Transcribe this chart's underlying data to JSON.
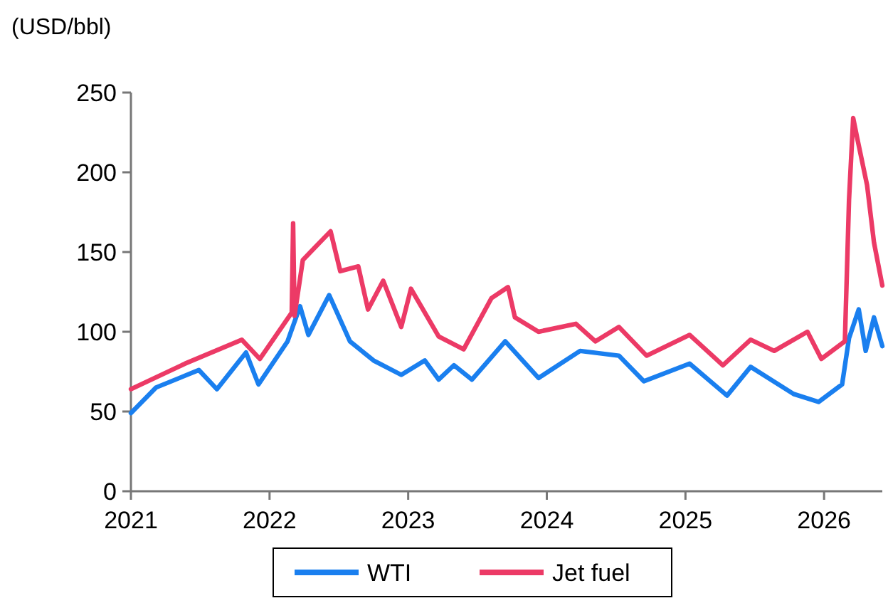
{
  "chart_data": {
    "type": "line",
    "ylabel": "(USD/bbl)",
    "xlim": [
      2021,
      2026.42
    ],
    "xticks": [
      2021,
      2022,
      2023,
      2024,
      2025,
      2026
    ],
    "ylim": [
      0,
      250
    ],
    "yticks": [
      0,
      50,
      100,
      150,
      200,
      250
    ],
    "grid": false,
    "legend": "bottom",
    "line_style": "solid",
    "marker": "none",
    "series": [
      {
        "name": "WTI",
        "color": "#1a7fef",
        "x": [
          2021,
          2021.18,
          2021.49,
          2021.62,
          2021.83,
          2021.92,
          2022.13,
          2022.22,
          2022.28,
          2022.43,
          2022.58,
          2022.75,
          2022.95,
          2023.12,
          2023.22,
          2023.33,
          2023.46,
          2023.7,
          2023.94,
          2024.24,
          2024.52,
          2024.7,
          2025.03,
          2025.3,
          2025.47,
          2025.78,
          2025.96,
          2026.13,
          2026.18,
          2026.25,
          2026.3,
          2026.36,
          2026.42
        ],
        "values": [
          49,
          65,
          76,
          64,
          87,
          67,
          94,
          116,
          98,
          123,
          94,
          82,
          73,
          82,
          70,
          79,
          70,
          94,
          71,
          88,
          85,
          69,
          80,
          60,
          78,
          61,
          56,
          67,
          96,
          114,
          88,
          109,
          91
        ]
      },
      {
        "name": "Jet fuel",
        "color": "#ec3a66",
        "x": [
          2021,
          2021.39,
          2021.8,
          2021.93,
          2022.16,
          2022.17,
          2022.18,
          2022.24,
          2022.34,
          2022.44,
          2022.51,
          2022.64,
          2022.71,
          2022.82,
          2022.95,
          2023.02,
          2023.22,
          2023.4,
          2023.6,
          2023.72,
          2023.77,
          2023.94,
          2024.21,
          2024.35,
          2024.52,
          2024.72,
          2025.03,
          2025.27,
          2025.47,
          2025.64,
          2025.88,
          2025.98,
          2026.15,
          2026.18,
          2026.21,
          2026.24,
          2026.31,
          2026.36,
          2026.42
        ],
        "values": [
          64,
          80,
          95,
          83,
          112,
          168,
          110,
          145,
          154,
          163,
          138,
          141,
          114,
          132,
          103,
          127,
          97,
          89,
          121,
          128,
          109,
          100,
          105,
          94,
          103,
          85,
          98,
          79,
          95,
          88,
          100,
          83,
          94,
          183,
          234,
          221,
          192,
          156,
          129
        ]
      }
    ]
  }
}
